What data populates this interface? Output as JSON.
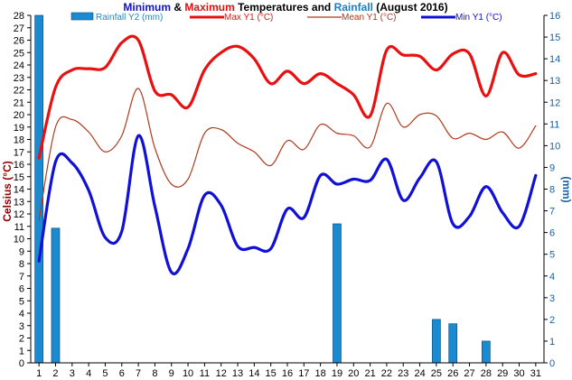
{
  "chart_data": {
    "type": "line",
    "title": {
      "parts": [
        {
          "text": "Minimum",
          "color": "#1010c8"
        },
        {
          "text": " & ",
          "color": "#000000"
        },
        {
          "text": "Maximum",
          "color": "#e01010"
        },
        {
          "text": " Temperatures and ",
          "color": "#000000"
        },
        {
          "text": "Rainfall",
          "color": "#1580c8"
        },
        {
          "text": " (August 2016)",
          "color": "#000000"
        }
      ]
    },
    "ylabel_left": "Celsius (°C)",
    "ylabel_right": "(mm)",
    "ylim_left": [
      0,
      28
    ],
    "ylim_right": [
      0,
      16
    ],
    "x": [
      "1",
      "2",
      "3",
      "4",
      "5",
      "6",
      "7",
      "8",
      "9",
      "10",
      "11",
      "12",
      "13",
      "14",
      "15",
      "16",
      "17",
      "18",
      "19",
      "20",
      "21",
      "22",
      "23",
      "24",
      "25",
      "26",
      "27",
      "28",
      "29",
      "30",
      "31"
    ],
    "series": [
      {
        "name": "Rainfall Y2 (mm)",
        "kind": "bar",
        "axis": "right",
        "color": "#1a8bd0",
        "values": [
          16.2,
          6.2,
          0,
          0,
          0,
          0,
          0,
          0,
          0,
          0,
          0,
          0,
          0,
          0,
          0,
          0,
          0,
          0,
          6.4,
          0,
          0,
          0,
          0,
          0,
          2.0,
          1.8,
          0,
          1.0,
          0,
          0,
          0
        ]
      },
      {
        "name": "Max Y1 (°C)",
        "kind": "line",
        "axis": "left",
        "color": "#e81010",
        "values": [
          16.5,
          22.2,
          23.6,
          23.7,
          23.8,
          25.8,
          26.0,
          21.9,
          21.6,
          20.6,
          23.6,
          25.0,
          25.5,
          24.5,
          22.5,
          23.5,
          22.5,
          23.3,
          22.5,
          21.6,
          19.9,
          25.2,
          24.8,
          24.7,
          23.6,
          24.9,
          24.9,
          21.5,
          25.0,
          23.2,
          23.3
        ]
      },
      {
        "name": "Mean Y1 (°C)",
        "kind": "line",
        "axis": "left",
        "color": "#b03a1e",
        "values": [
          11.5,
          19.0,
          19.6,
          18.6,
          17.0,
          18.3,
          22.1,
          17.3,
          14.4,
          14.8,
          18.5,
          18.8,
          17.7,
          17.0,
          15.9,
          17.9,
          17.2,
          19.2,
          18.5,
          18.3,
          17.4,
          20.9,
          19.0,
          20.0,
          19.9,
          18.1,
          18.5,
          18.0,
          18.6,
          17.3,
          19.1
        ]
      },
      {
        "name": "Min Y1 (°C)",
        "kind": "line",
        "axis": "left",
        "color": "#1010d8",
        "values": [
          8.2,
          16.2,
          16.1,
          13.9,
          10.1,
          10.6,
          18.3,
          12.6,
          7.3,
          9.2,
          13.5,
          12.7,
          9.4,
          9.3,
          9.2,
          12.4,
          11.7,
          15.1,
          14.4,
          14.8,
          14.7,
          16.4,
          13.1,
          14.9,
          16.2,
          11.2,
          11.8,
          14.2,
          12.1,
          11.0,
          15.1
        ]
      }
    ],
    "grid": false,
    "legend_position": "top"
  }
}
